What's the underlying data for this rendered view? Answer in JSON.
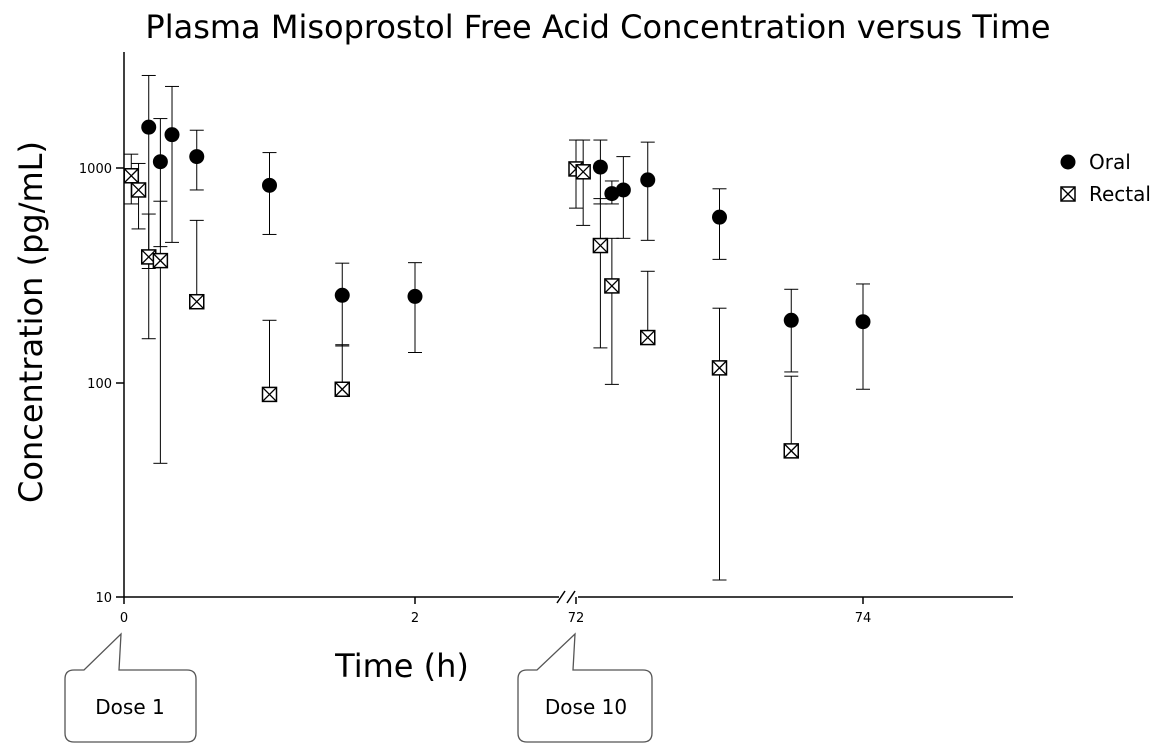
{
  "chart_data": {
    "type": "scatter",
    "title": "Plasma Misoprostol Free Acid Concentration versus Time",
    "xlabel": "Time (h)",
    "ylabel": "Concentration (pg/mL)",
    "y_scale": "log",
    "ylim": [
      10,
      4000
    ],
    "y_ticks": [
      "10",
      "100",
      "1000"
    ],
    "x_ticks": [
      "0",
      "2",
      "72",
      "74"
    ],
    "x_break": "between 2 and 72",
    "legend_position": "right",
    "series": [
      {
        "name": "Oral",
        "marker": "filled-circle",
        "points": [
          {
            "x": 0.17,
            "y": 1550,
            "lo": 340,
            "hi": 2700
          },
          {
            "x": 0.25,
            "y": 1070,
            "lo": 430,
            "hi": 1700
          },
          {
            "x": 0.33,
            "y": 1430,
            "lo": 450,
            "hi": 2400
          },
          {
            "x": 0.5,
            "y": 1130,
            "lo": 790,
            "hi": 1500
          },
          {
            "x": 1.0,
            "y": 830,
            "lo": 490,
            "hi": 1180
          },
          {
            "x": 1.5,
            "y": 255,
            "lo": 148,
            "hi": 360
          },
          {
            "x": 2.0,
            "y": 252,
            "lo": 138,
            "hi": 362
          },
          {
            "x": 72.17,
            "y": 1010,
            "lo": 680,
            "hi": 1350
          },
          {
            "x": 72.25,
            "y": 760,
            "lo": 680,
            "hi": 870
          },
          {
            "x": 72.33,
            "y": 790,
            "lo": 470,
            "hi": 1130
          },
          {
            "x": 72.5,
            "y": 880,
            "lo": 460,
            "hi": 1320
          },
          {
            "x": 73.0,
            "y": 590,
            "lo": 375,
            "hi": 800
          },
          {
            "x": 73.5,
            "y": 195,
            "lo": 112,
            "hi": 272
          },
          {
            "x": 74.0,
            "y": 192,
            "lo": 93,
            "hi": 288
          }
        ]
      },
      {
        "name": "Rectal",
        "marker": "crossed-square",
        "points": [
          {
            "x": 0.05,
            "y": 920,
            "lo": 680,
            "hi": 1160
          },
          {
            "x": 0.1,
            "y": 790,
            "lo": 520,
            "hi": 1050
          },
          {
            "x": 0.17,
            "y": 385,
            "lo": 160,
            "hi": 610
          },
          {
            "x": 0.25,
            "y": 370,
            "lo": 42,
            "hi": 700
          },
          {
            "x": 0.5,
            "y": 238,
            "lo": 237,
            "hi": 570
          },
          {
            "x": 1.0,
            "y": 88,
            "lo": 87,
            "hi": 195
          },
          {
            "x": 1.5,
            "y": 93,
            "lo": 92,
            "hi": 150
          },
          {
            "x": 72.0,
            "y": 990,
            "lo": 650,
            "hi": 1350
          },
          {
            "x": 72.05,
            "y": 960,
            "lo": 540,
            "hi": 1350
          },
          {
            "x": 72.17,
            "y": 435,
            "lo": 145,
            "hi": 720
          },
          {
            "x": 72.25,
            "y": 282,
            "lo": 98,
            "hi": 470
          },
          {
            "x": 72.5,
            "y": 162,
            "lo": 161,
            "hi": 330
          },
          {
            "x": 73.0,
            "y": 117,
            "lo": 12,
            "hi": 222
          },
          {
            "x": 73.5,
            "y": 48,
            "lo": 47,
            "hi": 107
          }
        ]
      }
    ],
    "annotations": [
      {
        "text": "Dose 1",
        "x": 0
      },
      {
        "text": "Dose 10",
        "x": 72
      }
    ]
  }
}
